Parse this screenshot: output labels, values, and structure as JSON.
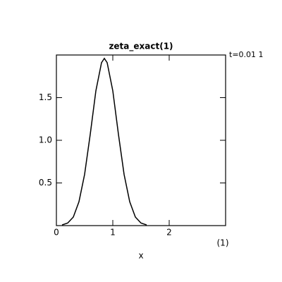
{
  "chart_data": {
    "type": "line",
    "title": "zeta_exact(1)",
    "annotation": "t=0.01 1",
    "xlabel": "x",
    "xunit_label": "(1)",
    "x": [
      0.1,
      0.2,
      0.3,
      0.4,
      0.5,
      0.6,
      0.7,
      0.8,
      0.85,
      0.9,
      1.0,
      1.1,
      1.2,
      1.3,
      1.4,
      1.5,
      1.6
    ],
    "series": [
      {
        "color": "#000000",
        "values": [
          0.008,
          0.03,
          0.1,
          0.28,
          0.6,
          1.07,
          1.58,
          1.91,
          1.96,
          1.91,
          1.58,
          1.07,
          0.6,
          0.28,
          0.1,
          0.03,
          0.008
        ]
      }
    ],
    "xlim": [
      0,
      3
    ],
    "ylim": [
      0,
      2.0
    ],
    "xticks": [
      0,
      1,
      2
    ],
    "yticks": [
      0.5,
      {
        "value": 1.0,
        "label": "1.0"
      },
      1.5
    ]
  }
}
